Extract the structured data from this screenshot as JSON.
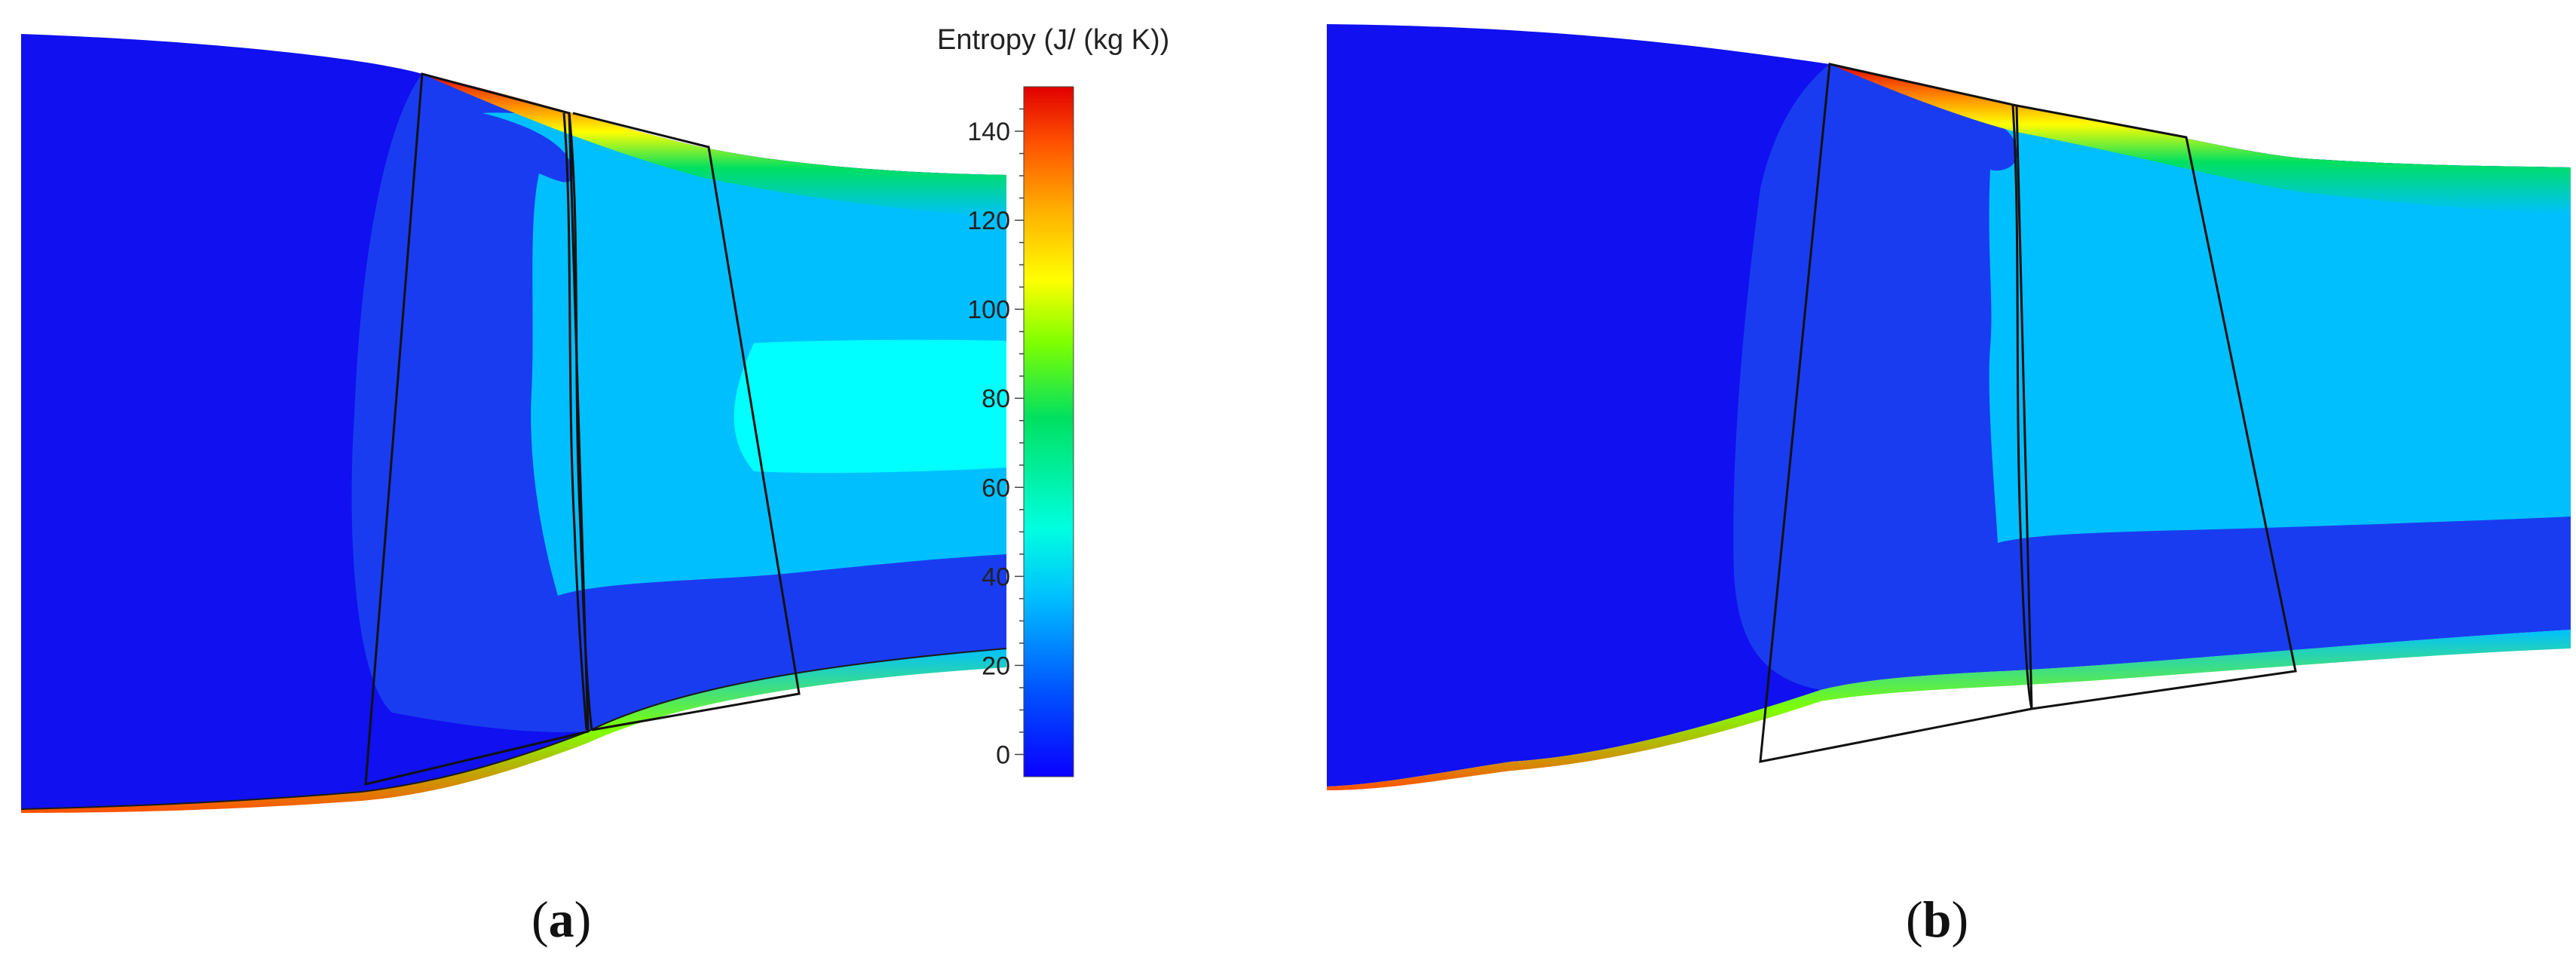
{
  "colorbar": {
    "title": "Entropy (J/ (kg K))",
    "ticks": [
      0,
      20,
      40,
      60,
      80,
      100,
      120,
      140
    ],
    "range": [
      -5,
      150
    ],
    "colormap": [
      "#0a00ff",
      "#0050ff",
      "#00c0ff",
      "#00ffe0",
      "#00e060",
      "#80ff00",
      "#ffff00",
      "#ffb000",
      "#ff5000",
      "#e00000"
    ]
  },
  "panels": [
    {
      "id": "a",
      "caption_open": "(",
      "caption_letter": "a",
      "caption_close": ")"
    },
    {
      "id": "b",
      "caption_open": "(",
      "caption_letter": "b",
      "caption_close": ")"
    }
  ],
  "colors": {
    "background_core": "#1010f0",
    "passage_mid": "#1a3cf0",
    "passage_light": "#00bfff",
    "wake_cyan": "#00ffff",
    "outline": "#111111"
  }
}
